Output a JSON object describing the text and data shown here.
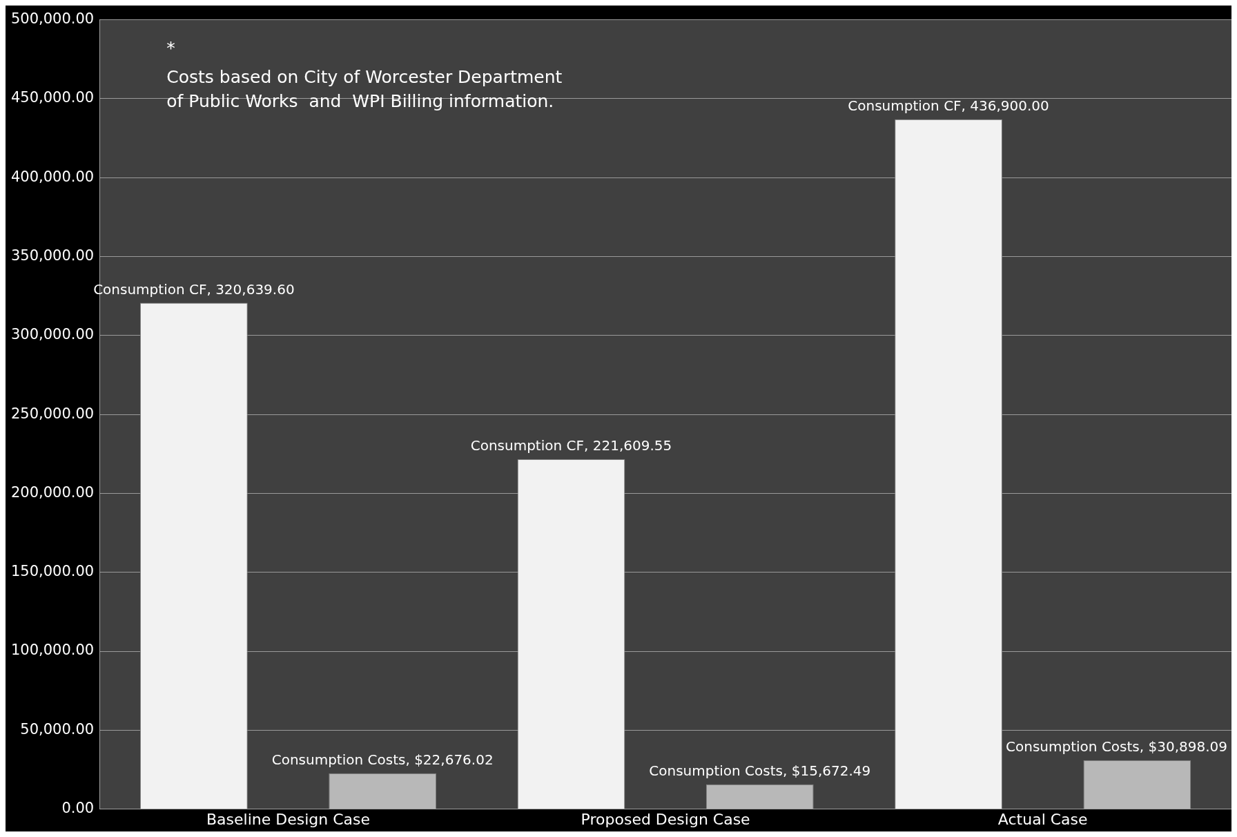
{
  "chart_data": {
    "type": "bar",
    "categories": [
      "Baseline Design Case",
      "Proposed Design Case",
      "Actual Case"
    ],
    "series": [
      {
        "color": "#f2f2f2",
        "values": [
          320639.6,
          221609.55,
          436900
        ],
        "value_labels": [
          "Consumption CF, 320,639.60",
          "Consumption CF, 221,609.55",
          "Consumption CF, 436,900.00"
        ]
      },
      {
        "color": "#b8b8b8",
        "values": [
          22676.02,
          15672.49,
          30898.09
        ],
        "value_labels": [
          "Consumption Costs, $22,676.02",
          "Consumption Costs, $15,672.49",
          "Consumption Costs, $30,898.09"
        ]
      }
    ],
    "ylim": [
      0,
      500000
    ],
    "yticks": [
      {
        "value": 0,
        "label": "0.00"
      },
      {
        "value": 50000,
        "label": "50,000.00"
      },
      {
        "value": 100000,
        "label": "100,000.00"
      },
      {
        "value": 150000,
        "label": "150,000.00"
      },
      {
        "value": 200000,
        "label": "200,000.00"
      },
      {
        "value": 250000,
        "label": "250,000.00"
      },
      {
        "value": 300000,
        "label": "300,000.00"
      },
      {
        "value": 350000,
        "label": "350,000.00"
      },
      {
        "value": 400000,
        "label": "400,000.00"
      },
      {
        "value": 450000,
        "label": "450,000.00"
      },
      {
        "value": 500000,
        "label": "500,000.00"
      }
    ],
    "grid": "y",
    "legend": false,
    "annotations": [
      "*",
      "Costs based on City of Worcester Department of Public Works  and  WPI Billing information."
    ]
  }
}
